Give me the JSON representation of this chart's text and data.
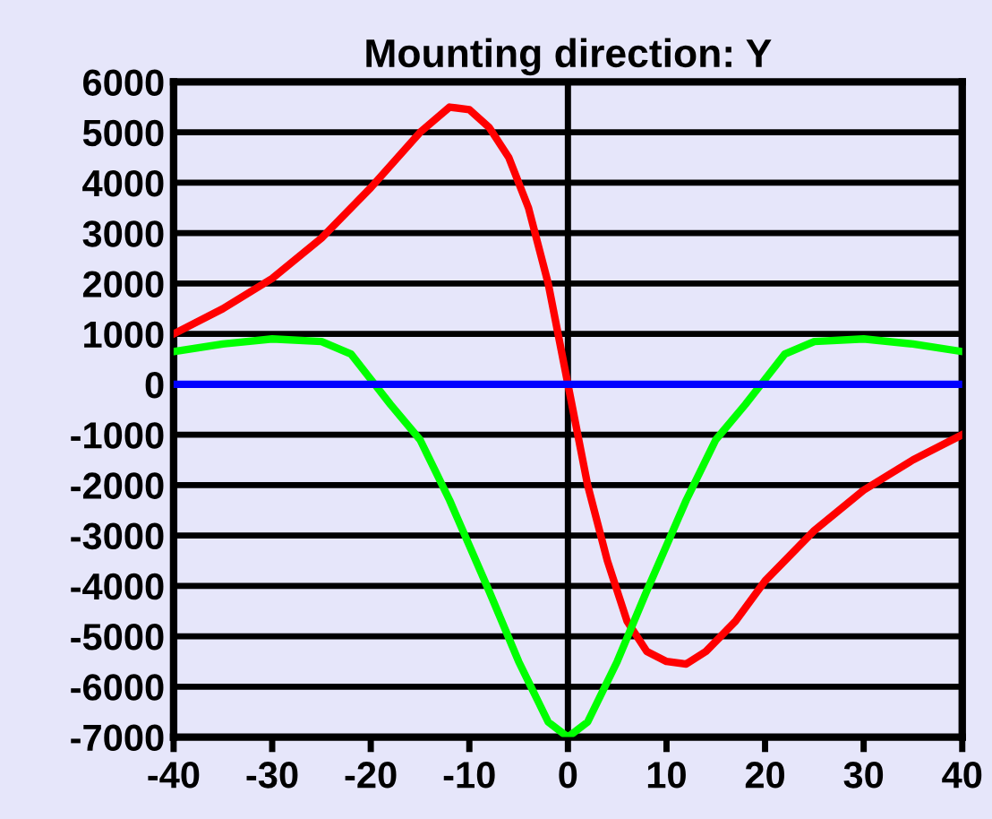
{
  "chart_data": {
    "type": "line",
    "title": "Mounting direction: Y",
    "xlim": [
      -40,
      40
    ],
    "xticks": [
      -40,
      -30,
      -20,
      -10,
      0,
      10,
      20,
      30,
      40
    ],
    "ylim": [
      -7000,
      6000
    ],
    "yticks": [
      -7000,
      -6000,
      -5000,
      -4000,
      -3000,
      -2000,
      -1000,
      0,
      1000,
      2000,
      3000,
      4000,
      5000,
      6000
    ],
    "grid": "y",
    "legend": false,
    "ref_lines": [
      {
        "axis": "x",
        "value": 0,
        "color": "#000000"
      }
    ],
    "series": [
      {
        "color": "#ff0000",
        "x": [
          -40,
          -35,
          -30,
          -25,
          -20,
          -15,
          -12,
          -10,
          -8,
          -6,
          -4,
          -2,
          0,
          2,
          4,
          6,
          8,
          10,
          12,
          14,
          17,
          20,
          25,
          30,
          35,
          40
        ],
        "values": [
          1000,
          1500,
          2100,
          2900,
          3900,
          5000,
          5500,
          5450,
          5100,
          4500,
          3500,
          2000,
          0,
          -2000,
          -3500,
          -4700,
          -5300,
          -5500,
          -5550,
          -5300,
          -4700,
          -3900,
          -2900,
          -2100,
          -1500,
          -1000
        ]
      },
      {
        "color": "#00ff00",
        "x": [
          -40,
          -35,
          -30,
          -25,
          -22,
          -20,
          -18,
          -15,
          -12,
          -10,
          -8,
          -5,
          -3,
          -2,
          0,
          2,
          3,
          5,
          8,
          10,
          12,
          15,
          18,
          20,
          22,
          25,
          30,
          35,
          40
        ],
        "values": [
          650,
          800,
          900,
          850,
          600,
          100,
          -400,
          -1100,
          -2300,
          -3200,
          -4100,
          -5500,
          -6300,
          -6700,
          -7000,
          -6700,
          -6300,
          -5500,
          -4100,
          -3200,
          -2300,
          -1100,
          -400,
          100,
          600,
          850,
          900,
          800,
          650
        ]
      },
      {
        "color": "#0000ff",
        "x": [
          -40,
          40
        ],
        "values": [
          0,
          0
        ]
      }
    ]
  }
}
